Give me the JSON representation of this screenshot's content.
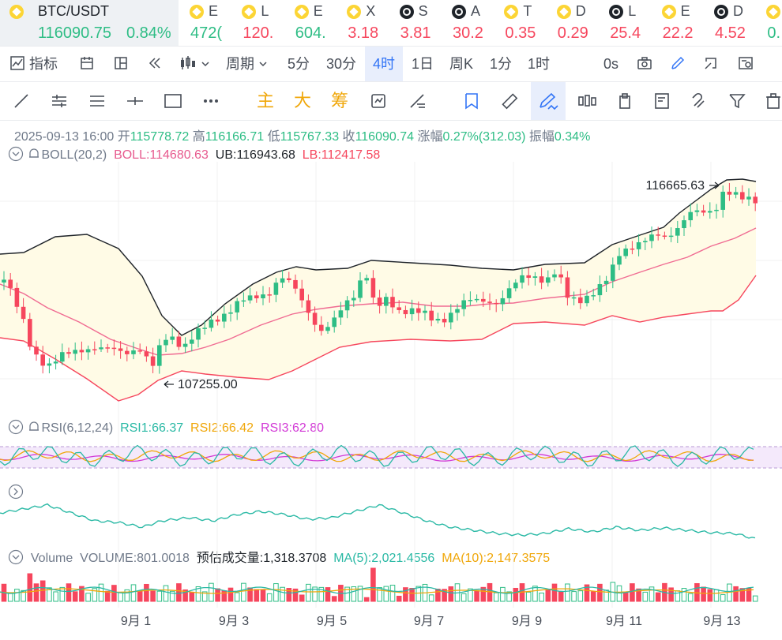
{
  "active_ticker": {
    "name": "BTC/USDT",
    "price": "116090.75",
    "change": "0.84%"
  },
  "tickers": [
    {
      "icon": "bnb",
      "name": "E",
      "price": "472(",
      "dir": "up"
    },
    {
      "icon": "bnb",
      "name": "L",
      "price": "120.",
      "dir": "down"
    },
    {
      "icon": "bnb",
      "name": "E",
      "price": "604.",
      "dir": "up"
    },
    {
      "icon": "bnb",
      "name": "X",
      "price": "3.18",
      "dir": "down"
    },
    {
      "icon": "x",
      "name": "S",
      "price": "3.81",
      "dir": "down"
    },
    {
      "icon": "x",
      "name": "A",
      "price": "30.2",
      "dir": "down"
    },
    {
      "icon": "bnb",
      "name": "T",
      "price": "0.35",
      "dir": "down"
    },
    {
      "icon": "bnb",
      "name": "D",
      "price": "0.29",
      "dir": "down"
    },
    {
      "icon": "x",
      "name": "L",
      "price": "25.4",
      "dir": "down"
    },
    {
      "icon": "bnb",
      "name": "E",
      "price": "22.2",
      "dir": "down"
    },
    {
      "icon": "x",
      "name": "D",
      "price": "4.52",
      "dir": "down"
    },
    {
      "icon": "bnb",
      "name": "",
      "price": "0.",
      "dir": "up"
    }
  ],
  "toolbar": {
    "indicators": "指标",
    "period": "周期",
    "intervals": [
      "5分",
      "30分",
      "4时",
      "1日",
      "周K",
      "1分",
      "1时"
    ],
    "countdown": "0s"
  },
  "drawing_tools": {
    "main": "主",
    "big": "大",
    "chips": "筹"
  },
  "ohlc": {
    "date": "2025-09-13 16:00",
    "open_label": "开",
    "open": "115778.72",
    "high_label": "高",
    "high": "116166.71",
    "low_label": "低",
    "low": "115767.33",
    "close_label": "收",
    "close": "116090.74",
    "change_label": "涨幅",
    "change": "0.27%(312.03)",
    "amp_label": "振幅",
    "amp": "0.34%"
  },
  "boll": {
    "name": "BOLL(20,2)",
    "boll": "BOLL:114680.63",
    "ub": "UB:116943.68",
    "lb": "LB:112417.58"
  },
  "annotations": {
    "high": "116665.63",
    "low": "107255.00"
  },
  "rsi": {
    "name": "RSI(6,12,24)",
    "rsi1": "RSI1:66.37",
    "rsi2": "RSI2:66.42",
    "rsi3": "RSI3:62.80"
  },
  "volume": {
    "name": "Volume",
    "vol": "VOLUME:801.0018",
    "est": "预估成交量:1,318.3708",
    "ma5": "MA(5):2,021.4556",
    "ma10": "MA(10):2,147.3575"
  },
  "x_dates": [
    "9月 1",
    "9月 3",
    "9月 5",
    "9月 7",
    "9月 9",
    "9月 11",
    "9月 13"
  ],
  "colors": {
    "up": "#2ebd85",
    "down": "#f6465d",
    "accent": "#3375f6",
    "boll": "#e75a8e",
    "band": "#1e2329",
    "lb": "#f6465d"
  }
}
